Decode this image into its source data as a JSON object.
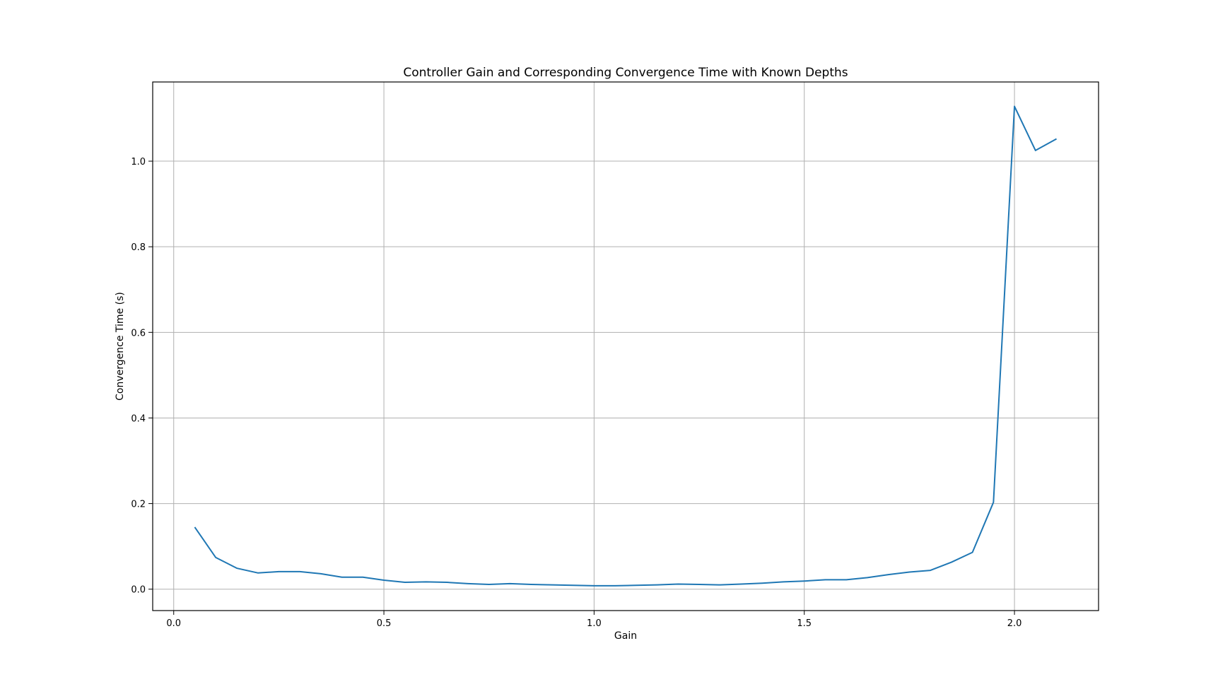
{
  "chart_data": {
    "type": "line",
    "title": "Controller Gain and Corresponding Convergence Time with Known Depths",
    "xlabel": "Gain",
    "ylabel": "Convergence Time (s)",
    "xlim": [
      -0.05,
      2.2
    ],
    "ylim": [
      -0.05,
      1.185
    ],
    "xticks": [
      0.0,
      0.5,
      1.0,
      1.5,
      2.0
    ],
    "xtick_labels": [
      "0.0",
      "0.5",
      "1.0",
      "1.5",
      "2.0"
    ],
    "yticks": [
      0.0,
      0.2,
      0.4,
      0.6,
      0.8,
      1.0
    ],
    "ytick_labels": [
      "0.0",
      "0.2",
      "0.4",
      "0.6",
      "0.8",
      "1.0"
    ],
    "grid": true,
    "series": [
      {
        "color": "#1f77b4",
        "x": [
          0.05,
          0.1,
          0.15,
          0.2,
          0.25,
          0.3,
          0.35,
          0.4,
          0.45,
          0.5,
          0.55,
          0.6,
          0.65,
          0.7,
          0.75,
          0.8,
          0.85,
          0.9,
          0.95,
          1.0,
          1.05,
          1.1,
          1.15,
          1.2,
          1.25,
          1.3,
          1.35,
          1.4,
          1.45,
          1.5,
          1.55,
          1.6,
          1.65,
          1.7,
          1.75,
          1.8,
          1.85,
          1.9,
          1.95,
          2.0,
          2.05,
          2.1
        ],
        "y": [
          0.145,
          0.074,
          0.049,
          0.038,
          0.041,
          0.041,
          0.036,
          0.028,
          0.028,
          0.021,
          0.016,
          0.017,
          0.016,
          0.013,
          0.011,
          0.013,
          0.011,
          0.01,
          0.009,
          0.008,
          0.008,
          0.009,
          0.01,
          0.012,
          0.011,
          0.01,
          0.012,
          0.014,
          0.017,
          0.019,
          0.022,
          0.022,
          0.027,
          0.034,
          0.04,
          0.044,
          0.063,
          0.086,
          0.203,
          1.128,
          1.025,
          1.052
        ]
      }
    ]
  }
}
